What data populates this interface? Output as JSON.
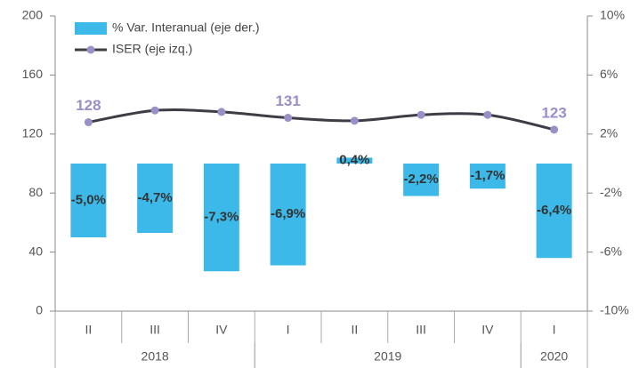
{
  "chart_data": {
    "type": "bar-line",
    "category_groups": [
      {
        "name": "2018",
        "categories": [
          "II",
          "III",
          "IV"
        ]
      },
      {
        "name": "2019",
        "categories": [
          "I",
          "II",
          "III",
          "IV"
        ]
      },
      {
        "name": "2020",
        "categories": [
          "I"
        ]
      }
    ],
    "series": [
      {
        "name": "% Var. Interanual (eje der.)",
        "type": "bar",
        "axis": "y2",
        "color": "#3cb9e8",
        "values": [
          -5.0,
          -4.7,
          -7.3,
          -6.9,
          0.4,
          -2.2,
          -1.7,
          -6.4
        ],
        "value_labels": [
          "-5,0%",
          "-4,7%",
          "-7,3%",
          "-6,9%",
          "0,4%",
          "-2,2%",
          "-1,7%",
          "-6,4%"
        ]
      },
      {
        "name": "ISER (eje izq.)",
        "type": "line",
        "color": "#3d3d45",
        "marker_color": "#9b8fc8",
        "values": [
          128,
          136,
          135,
          131,
          129,
          133,
          133,
          123
        ],
        "value_labels": [
          "128",
          null,
          null,
          "131",
          null,
          null,
          null,
          "123"
        ]
      }
    ],
    "ylim": [
      0,
      200
    ],
    "yticks": [
      0,
      40,
      80,
      120,
      160,
      200
    ],
    "y2lim": [
      -10,
      10
    ],
    "y2ticks": [
      {
        "value": -10,
        "label": "-10%"
      },
      {
        "value": -6,
        "label": "-6%"
      },
      {
        "value": -2,
        "label": "-2%"
      },
      {
        "value": 2,
        "label": "2%"
      },
      {
        "value": 6,
        "label": "6%"
      },
      {
        "value": 10,
        "label": "10%"
      }
    ]
  }
}
